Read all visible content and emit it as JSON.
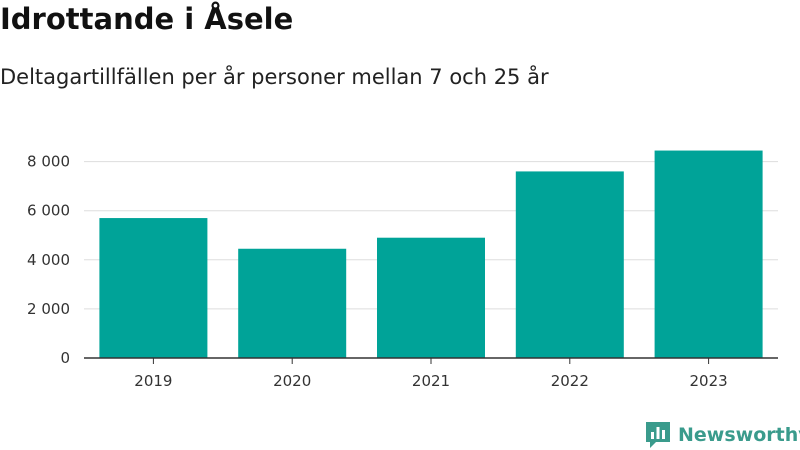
{
  "header": {
    "title": "Idrottande i Åsele",
    "subtitle": "Deltagartillfällen per år personer mellan 7 och 25 år"
  },
  "brand": {
    "name": "Newsworthy",
    "icon": "newsworthy-logo-icon",
    "color": "#3a9b8c"
  },
  "colors": {
    "bar": "#00a398",
    "grid": "#dddddd",
    "axis": "#333333"
  },
  "chart_data": {
    "type": "bar",
    "categories": [
      "2019",
      "2020",
      "2021",
      "2022",
      "2023"
    ],
    "values": [
      5700,
      4450,
      4900,
      7600,
      8450
    ],
    "ylim": [
      0,
      8800
    ],
    "yticks": [
      0,
      2000,
      4000,
      6000,
      8000
    ],
    "ytick_labels": [
      "0",
      "2 000",
      "4 000",
      "6 000",
      "8 000"
    ],
    "grid": true,
    "legend": "none"
  }
}
